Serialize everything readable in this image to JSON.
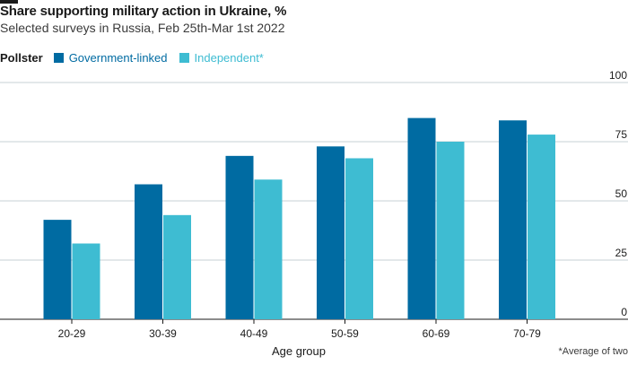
{
  "chart_data": {
    "type": "bar",
    "title": "Share supporting military action in Ukraine, %",
    "subtitle": "Selected surveys in Russia, Feb 25th-Mar 1st 2022",
    "legend_title": "Pollster",
    "xlabel": "Age group",
    "categories": [
      "20-29",
      "30-39",
      "40-49",
      "50-59",
      "60-69",
      "70-79"
    ],
    "series": [
      {
        "name": "Government-linked",
        "color": "#006ba2",
        "values": [
          42,
          57,
          69,
          73,
          85,
          84
        ]
      },
      {
        "name": "Independent*",
        "color": "#3ebcd2",
        "values": [
          32,
          44,
          59,
          68,
          75,
          78
        ]
      }
    ],
    "ylim": [
      0,
      100
    ],
    "yticks": [
      0,
      25,
      50,
      75,
      100
    ],
    "grid": true,
    "legend_placement": "top-left",
    "footnote": "*Average of two"
  }
}
